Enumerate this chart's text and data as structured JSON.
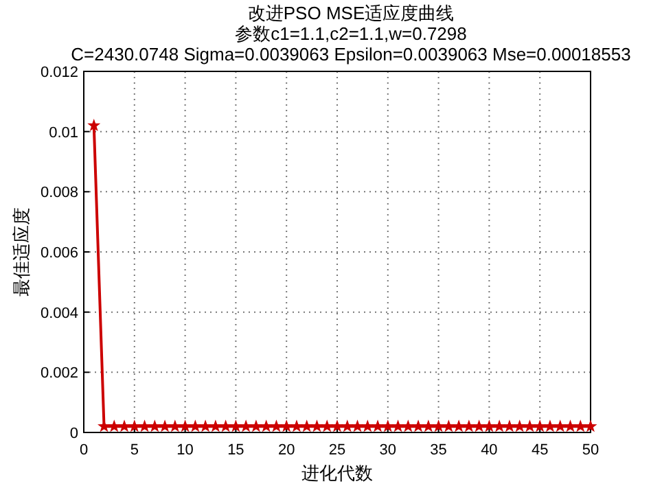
{
  "chart_data": {
    "type": "line",
    "title": "改进PSO MSE适应度曲线",
    "subtitle": "参数c1=1.1,c2=1.1,w=0.7298\nC=2430.0748 Sigma=0.0039063 Epsilon=0.0039063 Mse=0.00018553",
    "xlabel": "进化代数",
    "ylabel": "最佳适应度",
    "x": [
      1,
      2,
      3,
      4,
      5,
      6,
      7,
      8,
      9,
      10,
      11,
      12,
      13,
      14,
      15,
      16,
      17,
      18,
      19,
      20,
      21,
      22,
      23,
      24,
      25,
      26,
      27,
      28,
      29,
      30,
      31,
      32,
      33,
      34,
      35,
      36,
      37,
      38,
      39,
      40,
      41,
      42,
      43,
      44,
      45,
      46,
      47,
      48,
      49,
      50
    ],
    "series": [
      {
        "color": "#cc0000",
        "values": [
          0.0102,
          0.0002,
          0.0002,
          0.0002,
          0.0002,
          0.0002,
          0.0002,
          0.0002,
          0.0002,
          0.0002,
          0.0002,
          0.0002,
          0.0002,
          0.0002,
          0.0002,
          0.0002,
          0.0002,
          0.0002,
          0.0002,
          0.0002,
          0.0002,
          0.0002,
          0.0002,
          0.0002,
          0.0002,
          0.0002,
          0.0002,
          0.0002,
          0.0002,
          0.0002,
          0.0002,
          0.0002,
          0.0002,
          0.0002,
          0.0002,
          0.0002,
          0.0002,
          0.0002,
          0.0002,
          0.0002,
          0.0002,
          0.0002,
          0.0002,
          0.0002,
          0.0002,
          0.0002,
          0.0002,
          0.0002,
          0.0002,
          0.0002
        ]
      }
    ],
    "xlim": [
      0,
      50
    ],
    "xticks": [
      0,
      5,
      10,
      15,
      20,
      25,
      30,
      35,
      40,
      45,
      50
    ],
    "ylim": [
      0,
      0.012
    ],
    "yticks": [
      0,
      0.002,
      0.004,
      0.006,
      0.008,
      0.01,
      0.012
    ],
    "grid": true,
    "marker": "star",
    "line_style": "solid"
  }
}
